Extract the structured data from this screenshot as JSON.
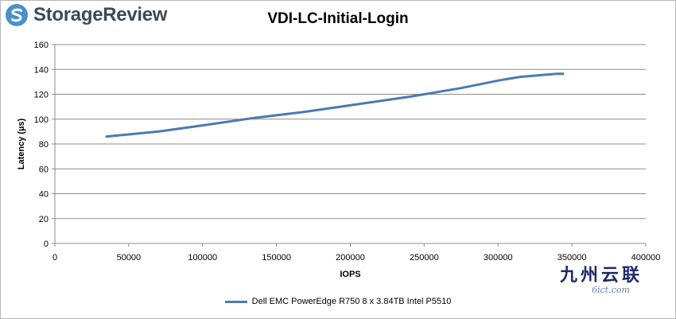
{
  "brand": {
    "name": "StorageReview",
    "logo_icon": "storagereview-logo-icon",
    "logo_color": "#4a90c9"
  },
  "watermark": {
    "main": "九州云联",
    "sub": "6ict.com"
  },
  "chart_data": {
    "type": "line",
    "title": "VDI-LC-Initial-Login",
    "xlabel": "IOPS",
    "ylabel": "Latency (µs)",
    "xlim": [
      0,
      400000
    ],
    "ylim": [
      0,
      160
    ],
    "x_ticks": [
      0,
      50000,
      100000,
      150000,
      200000,
      250000,
      300000,
      350000,
      400000
    ],
    "y_ticks": [
      0,
      20,
      40,
      60,
      80,
      100,
      120,
      140,
      160
    ],
    "grid": "horizontal",
    "legend_position": "bottom",
    "series": [
      {
        "name": "Dell EMC PowerEdge R750 8 x 3.84TB Intel P5510",
        "color": "#4a7ab2",
        "points": [
          [
            35000,
            86
          ],
          [
            70000,
            90
          ],
          [
            100000,
            95
          ],
          [
            135000,
            101
          ],
          [
            170000,
            106
          ],
          [
            205000,
            112
          ],
          [
            240000,
            118
          ],
          [
            275000,
            125
          ],
          [
            300000,
            131
          ],
          [
            315000,
            134
          ],
          [
            330000,
            135.5
          ],
          [
            340000,
            136.5
          ],
          [
            344000,
            136.5
          ]
        ]
      }
    ]
  }
}
